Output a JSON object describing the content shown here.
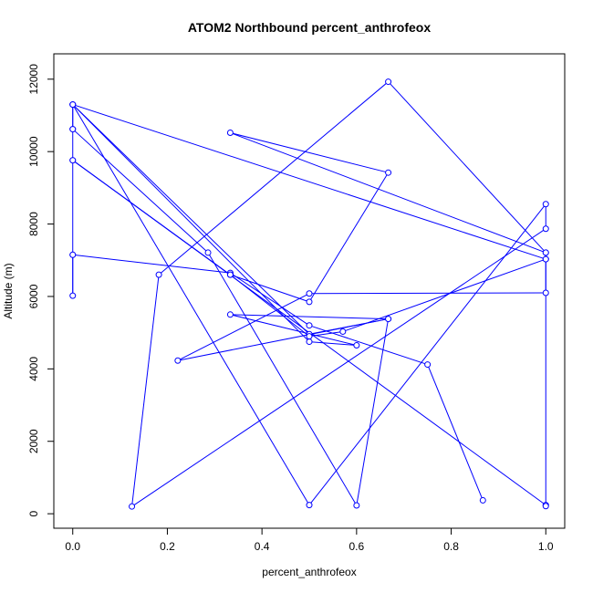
{
  "chart_data": {
    "type": "line",
    "title": "ATOM2 Northbound percent_anthrofeox",
    "xlabel": "percent_anthrofeox",
    "ylabel": "Altitude (m)",
    "xlim": [
      -0.04,
      1.04
    ],
    "ylim": [
      -400,
      12700
    ],
    "xticks": [
      0.0,
      0.2,
      0.4,
      0.6,
      0.8,
      1.0
    ],
    "xtick_labels": [
      "0.0",
      "0.2",
      "0.4",
      "0.6",
      "0.8",
      "1.0"
    ],
    "yticks": [
      0,
      2000,
      4000,
      6000,
      8000,
      10000,
      12000
    ],
    "ytick_labels": [
      "0",
      "2000",
      "4000",
      "6000",
      "8000",
      "10000",
      "12000"
    ],
    "series_color": "#0000ff",
    "marker": "open-circle",
    "grid": false,
    "x": [
      0.867,
      0.75,
      0.5,
      0.333,
      0.0,
      0.0,
      0.0,
      0.0,
      1.0,
      1.0,
      1.0,
      0.333,
      0.667,
      0.5,
      0.333,
      0.0,
      0.0,
      0.0,
      0.5,
      0.667,
      0.333,
      0.6,
      0.5,
      0.0,
      1.0,
      1.0,
      0.5,
      0.222,
      0.667,
      0.6,
      0.286,
      0.0,
      0.0,
      0.5,
      1.0,
      1.0,
      0.125,
      0.182,
      0.667,
      1.0,
      1.0,
      0.571,
      0.5,
      0.333
    ],
    "y": [
      370,
      4120,
      5200,
      6650,
      7150,
      6020,
      7150,
      9760,
      240,
      210,
      7210,
      10520,
      9420,
      5850,
      6600,
      9760,
      10620,
      11300,
      4960,
      5380,
      5500,
      4650,
      4750,
      11300,
      7030,
      6100,
      6080,
      4230,
      5380,
      230,
      7210,
      10620,
      11300,
      240,
      8550,
      7870,
      200,
      6600,
      11930,
      7210,
      7030,
      5030,
      4900,
      6600
    ]
  }
}
